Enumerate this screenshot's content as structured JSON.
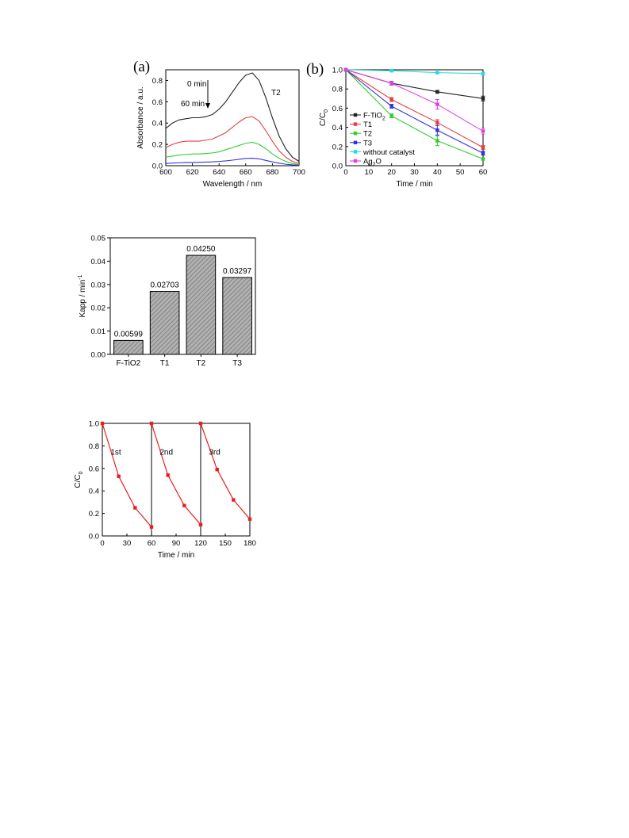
{
  "chart_data": [
    {
      "id": "a",
      "type": "line",
      "panel_label": "(a)",
      "xlabel": "Wavelength / nm",
      "ylabel": "Absorbance / a.u.",
      "xlim": [
        600,
        700
      ],
      "ylim": [
        0.0,
        0.9
      ],
      "xticks": [
        600,
        620,
        640,
        660,
        680,
        700
      ],
      "yticks": [
        0.0,
        0.2,
        0.4,
        0.6,
        0.8
      ],
      "ytick_labels": [
        "0.0",
        "0.2",
        "0.4",
        "0.6",
        "0.8"
      ],
      "annotations": {
        "top": "0 min",
        "bottom": "60 min",
        "sample": "T2"
      },
      "series": [
        {
          "color": "#222222",
          "x": [
            600,
            605,
            610,
            615,
            620,
            625,
            630,
            635,
            640,
            645,
            650,
            655,
            660,
            665,
            670,
            675,
            680,
            685,
            690,
            695,
            700
          ],
          "y": [
            0.35,
            0.4,
            0.43,
            0.44,
            0.45,
            0.45,
            0.46,
            0.48,
            0.53,
            0.6,
            0.69,
            0.78,
            0.85,
            0.87,
            0.8,
            0.64,
            0.45,
            0.28,
            0.16,
            0.08,
            0.04
          ]
        },
        {
          "color": "#e34040",
          "x": [
            600,
            605,
            610,
            615,
            620,
            625,
            630,
            635,
            640,
            645,
            650,
            655,
            660,
            665,
            670,
            675,
            680,
            685,
            690,
            695,
            700
          ],
          "y": [
            0.17,
            0.2,
            0.22,
            0.23,
            0.23,
            0.23,
            0.24,
            0.25,
            0.28,
            0.31,
            0.36,
            0.41,
            0.45,
            0.46,
            0.42,
            0.33,
            0.23,
            0.14,
            0.08,
            0.04,
            0.02
          ]
        },
        {
          "color": "#33cc33",
          "x": [
            600,
            605,
            610,
            615,
            620,
            625,
            630,
            635,
            640,
            645,
            650,
            655,
            660,
            665,
            670,
            675,
            680,
            685,
            690,
            695,
            700
          ],
          "y": [
            0.08,
            0.09,
            0.1,
            0.105,
            0.11,
            0.11,
            0.115,
            0.12,
            0.13,
            0.15,
            0.17,
            0.19,
            0.21,
            0.22,
            0.2,
            0.16,
            0.11,
            0.07,
            0.04,
            0.02,
            0.01
          ]
        },
        {
          "color": "#3333dd",
          "x": [
            600,
            605,
            610,
            615,
            620,
            625,
            630,
            635,
            640,
            645,
            650,
            655,
            660,
            665,
            670,
            675,
            680,
            685,
            690,
            695,
            700
          ],
          "y": [
            0.02,
            0.025,
            0.027,
            0.03,
            0.03,
            0.032,
            0.034,
            0.036,
            0.04,
            0.045,
            0.052,
            0.06,
            0.068,
            0.07,
            0.064,
            0.05,
            0.036,
            0.024,
            0.014,
            0.008,
            0.004
          ]
        }
      ]
    },
    {
      "id": "b",
      "type": "line",
      "panel_label": "(b)",
      "xlabel": "Time / min",
      "ylabel": "C/C",
      "ylabel_sub": "0",
      "xlim": [
        0,
        60
      ],
      "ylim": [
        0.0,
        1.0
      ],
      "xticks": [
        0,
        10,
        20,
        30,
        40,
        50,
        60
      ],
      "yticks": [
        0.0,
        0.2,
        0.4,
        0.6,
        0.8,
        1.0
      ],
      "ytick_labels": [
        "0.0",
        "0.2",
        "0.4",
        "0.6",
        "0.8",
        "1.0"
      ],
      "legend_position": "left",
      "series": [
        {
          "name": "F-TiO",
          "name_sub": "2",
          "color": "#222222",
          "x": [
            0,
            20,
            40,
            60
          ],
          "y": [
            1.0,
            0.86,
            0.77,
            0.7
          ],
          "err": [
            0,
            0.02,
            0.015,
            0.025
          ]
        },
        {
          "name": "T1",
          "color": "#e34040",
          "x": [
            0,
            20,
            40,
            60
          ],
          "y": [
            1.0,
            0.69,
            0.45,
            0.19
          ],
          "err": [
            0,
            0.02,
            0.03,
            0.02
          ]
        },
        {
          "name": "T2",
          "color": "#33cc33",
          "x": [
            0,
            20,
            40,
            60
          ],
          "y": [
            1.0,
            0.52,
            0.26,
            0.07
          ],
          "err": [
            0,
            0.02,
            0.05,
            0.01
          ]
        },
        {
          "name": "T3",
          "color": "#3333dd",
          "x": [
            0,
            20,
            40,
            60
          ],
          "y": [
            1.0,
            0.62,
            0.37,
            0.13
          ],
          "err": [
            0,
            0.02,
            0.05,
            0.02
          ]
        },
        {
          "name": "without catalyst",
          "color": "#22dddd",
          "x": [
            0,
            20,
            40,
            60
          ],
          "y": [
            1.0,
            0.99,
            0.97,
            0.96
          ],
          "err": [
            0,
            0.01,
            0.01,
            0.01
          ]
        },
        {
          "name": "Ag",
          "name_sub": "2",
          "name_tail": "O",
          "color": "#e040e0",
          "x": [
            0,
            20,
            40,
            60
          ],
          "y": [
            1.0,
            0.86,
            0.64,
            0.36
          ],
          "err": [
            0,
            0.02,
            0.05,
            0.03
          ]
        }
      ]
    },
    {
      "id": "c",
      "type": "bar",
      "ylabel": "Kapp / min",
      "ylabel_sup": "-1",
      "categories": [
        "F-TiO2",
        "T1",
        "T2",
        "T3"
      ],
      "values": [
        0.00599,
        0.02703,
        0.0425,
        0.03297
      ],
      "data_labels": [
        "0.00599",
        "0.02703",
        "0.04250",
        "0.03297"
      ],
      "ylim": [
        0.0,
        0.05
      ],
      "yticks": [
        0.0,
        0.01,
        0.02,
        0.03,
        0.04,
        0.05
      ],
      "ytick_labels": [
        "0.00",
        "0.01",
        "0.02",
        "0.03",
        "0.04",
        "0.05"
      ],
      "bar_fill": "#b0b0b0"
    },
    {
      "id": "d",
      "type": "line",
      "xlabel": "Time / min",
      "ylabel": "C/C",
      "ylabel_sub": "0",
      "xlim": [
        0,
        180
      ],
      "ylim": [
        0.0,
        1.0
      ],
      "xticks": [
        0,
        30,
        60,
        90,
        120,
        150,
        180
      ],
      "yticks": [
        0.0,
        0.2,
        0.4,
        0.6,
        0.8,
        1.0
      ],
      "ytick_labels": [
        "0.0",
        "0.2",
        "0.4",
        "0.6",
        "0.8",
        "1.0"
      ],
      "cycle_dividers": [
        60,
        120
      ],
      "cycle_labels": [
        {
          "text": "1st",
          "x": 10,
          "y": 0.75
        },
        {
          "text": "2nd",
          "x": 70,
          "y": 0.75
        },
        {
          "text": "3rd",
          "x": 130,
          "y": 0.75
        }
      ],
      "color": "#ee1c1c",
      "cycles": [
        {
          "x": [
            0,
            20,
            40,
            60
          ],
          "y": [
            1.0,
            0.53,
            0.25,
            0.08
          ]
        },
        {
          "x": [
            60,
            80,
            100,
            120
          ],
          "y": [
            1.0,
            0.54,
            0.27,
            0.1
          ]
        },
        {
          "x": [
            120,
            140,
            160,
            180
          ],
          "y": [
            1.0,
            0.59,
            0.32,
            0.15
          ]
        }
      ]
    }
  ]
}
